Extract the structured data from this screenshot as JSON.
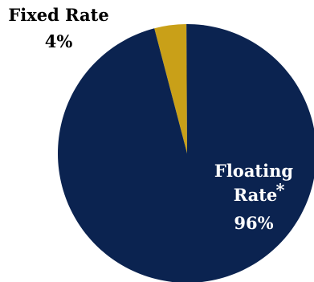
{
  "chart_data": {
    "type": "pie",
    "title": "",
    "slices": [
      {
        "label": "Fixed Rate",
        "value": 4,
        "value_label": "4%",
        "color": "#C9A018"
      },
      {
        "label": "Floating Rate",
        "footnote_marker": "*",
        "value": 96,
        "value_label": "96%",
        "color": "#0B2350"
      }
    ]
  }
}
